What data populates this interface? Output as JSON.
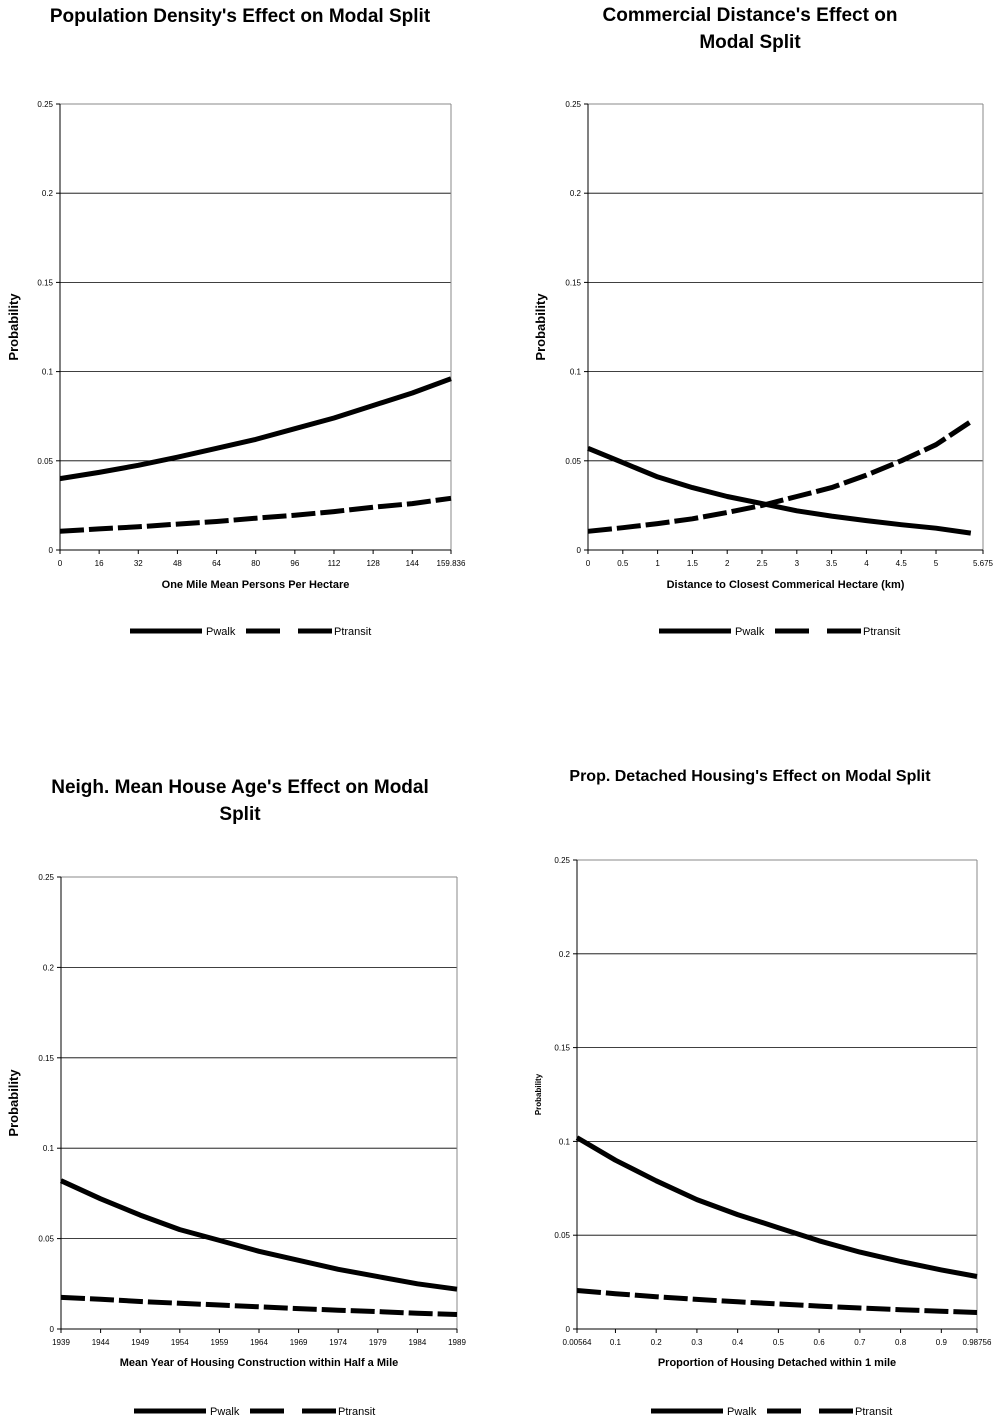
{
  "chart_data": [
    {
      "type": "line",
      "title": "Population Density's Effect on Modal Split",
      "xlabel": "One Mile Mean Persons Per Hectare",
      "ylabel": "Probability",
      "xlim": [
        0,
        159.836
      ],
      "ylim": [
        0,
        0.25
      ],
      "x_ticks": [
        "0",
        "16",
        "32",
        "48",
        "64",
        "80",
        "96",
        "112",
        "128",
        "144",
        "159.836"
      ],
      "y_ticks": [
        "0",
        "0.05",
        "0.1",
        "0.15",
        "0.2",
        "0.25"
      ],
      "grid": true,
      "legend": "bottom",
      "x": [
        0,
        16,
        32,
        48,
        64,
        80,
        96,
        112,
        128,
        144,
        159.836
      ],
      "series": [
        {
          "name": "Pwalk",
          "style": "solid",
          "values": [
            0.04,
            0.0435,
            0.0475,
            0.052,
            0.057,
            0.062,
            0.068,
            0.074,
            0.081,
            0.088,
            0.096
          ]
        },
        {
          "name": "Ptransit",
          "style": "dashed",
          "values": [
            0.0105,
            0.0118,
            0.013,
            0.0145,
            0.016,
            0.0178,
            0.0195,
            0.0215,
            0.024,
            0.026,
            0.029
          ]
        }
      ]
    },
    {
      "type": "line",
      "title": "Commercial Distance's Effect on Modal Split",
      "xlabel": "Distance to Closest Commerical Hectare (km)",
      "ylabel": "Probability",
      "xlim": [
        0,
        5.675
      ],
      "ylim": [
        0,
        0.25
      ],
      "x_ticks": [
        "0",
        "0.5",
        "1",
        "1.5",
        "2",
        "2.5",
        "3",
        "3.5",
        "4",
        "4.5",
        "5",
        "5.675"
      ],
      "y_ticks": [
        "0",
        "0.05",
        "0.1",
        "0.15",
        "0.2",
        "0.25"
      ],
      "grid": true,
      "legend": "bottom",
      "x": [
        0,
        0.5,
        1,
        1.5,
        2,
        2.5,
        3,
        3.5,
        4,
        4.5,
        5,
        5.5
      ],
      "series": [
        {
          "name": "Pwalk",
          "style": "solid",
          "values": [
            0.057,
            0.049,
            0.041,
            0.035,
            0.03,
            0.026,
            0.022,
            0.019,
            0.0165,
            0.0142,
            0.0122,
            0.0095
          ]
        },
        {
          "name": "Ptransit",
          "style": "dashed",
          "values": [
            0.0105,
            0.0125,
            0.0148,
            0.0175,
            0.021,
            0.025,
            0.03,
            0.035,
            0.042,
            0.05,
            0.059,
            0.072
          ]
        }
      ]
    },
    {
      "type": "line",
      "title": "Neigh. Mean House Age's Effect on Modal Split",
      "xlabel": "Mean Year of Housing Construction within Half a Mile",
      "ylabel": "Probability",
      "xlim": [
        1939,
        1989
      ],
      "ylim": [
        0,
        0.25
      ],
      "x_ticks": [
        "1939",
        "1944",
        "1949",
        "1954",
        "1959",
        "1964",
        "1969",
        "1974",
        "1979",
        "1984",
        "1989"
      ],
      "y_ticks": [
        "0",
        "0.05",
        "0.1",
        "0.15",
        "0.2",
        "0.25"
      ],
      "grid": true,
      "legend": "bottom",
      "x": [
        1939,
        1944,
        1949,
        1954,
        1959,
        1964,
        1969,
        1974,
        1979,
        1984,
        1989
      ],
      "series": [
        {
          "name": "Pwalk",
          "style": "solid",
          "values": [
            0.082,
            0.072,
            0.063,
            0.055,
            0.049,
            0.043,
            0.038,
            0.033,
            0.029,
            0.025,
            0.022
          ]
        },
        {
          "name": "Ptransit",
          "style": "dashed",
          "values": [
            0.0175,
            0.0165,
            0.0152,
            0.0142,
            0.0133,
            0.0123,
            0.0113,
            0.0104,
            0.0096,
            0.0087,
            0.008
          ]
        }
      ]
    },
    {
      "type": "line",
      "title": "Prop. Detached Housing's Effect on Modal Split",
      "xlabel": "Proportion of Housing Detached within 1 mile",
      "ylabel": "Probability",
      "xlim": [
        0.00564,
        0.98756
      ],
      "ylim": [
        0,
        0.25
      ],
      "x_ticks": [
        "0.00564",
        "0.1",
        "0.2",
        "0.3",
        "0.4",
        "0.5",
        "0.6",
        "0.7",
        "0.8",
        "0.9",
        "0.98756"
      ],
      "y_ticks": [
        "0",
        "0.05",
        "0.1",
        "0.15",
        "0.2",
        "0.25"
      ],
      "grid": true,
      "legend": "bottom",
      "x": [
        0.00564,
        0.1,
        0.2,
        0.3,
        0.4,
        0.5,
        0.6,
        0.7,
        0.8,
        0.9,
        0.98756
      ],
      "series": [
        {
          "name": "Pwalk",
          "style": "solid",
          "values": [
            0.102,
            0.09,
            0.079,
            0.069,
            0.061,
            0.054,
            0.047,
            0.041,
            0.036,
            0.0315,
            0.028
          ]
        },
        {
          "name": "Ptransit",
          "style": "dashed",
          "values": [
            0.0205,
            0.0188,
            0.0172,
            0.0158,
            0.0145,
            0.0133,
            0.0122,
            0.0112,
            0.0103,
            0.0095,
            0.0088
          ]
        }
      ]
    }
  ]
}
